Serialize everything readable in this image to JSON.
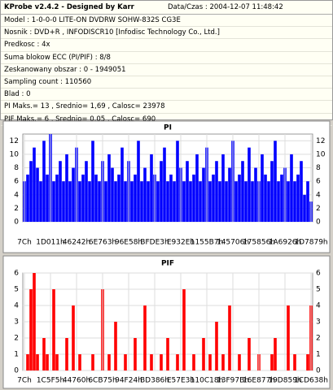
{
  "header": {
    "title": "KProbe v2.4.2 - Designed by Karr",
    "datetime": "Data/Czas : 2004-12-07 11:48:42"
  },
  "info": [
    "Model : 1-0-0-0 LITE-ON DVDRW SOHW-832S  CG3E",
    "Nosnik : DVD+R , INFODISCR10 [Infodisc Technology Co., Ltd.]",
    "Predkosc : 4x",
    "Suma blokow ECC (PI/PIF) : 8/8",
    "Zeskanowany obszar : 0 - 1949051",
    "Sampling count : 110560",
    "Blad : 0",
    "PI Maks.= 13 , Srednio= 1,69 , Calosc= 23978",
    "PIF Maks.= 6 , Srednio= 0,05 , Calosc= 690"
  ],
  "chart_data": [
    {
      "type": "bar",
      "title": "PI",
      "color": "#0000ff",
      "grid": true,
      "ylim": [
        0,
        13
      ],
      "yticks": [
        0,
        2,
        4,
        6,
        8,
        10,
        12
      ],
      "categories": [
        "7Ch",
        null,
        null,
        null,
        null,
        null,
        null,
        null,
        "1D011h",
        null,
        null,
        null,
        null,
        null,
        null,
        null,
        "46242h",
        null,
        null,
        null,
        null,
        null,
        null,
        null,
        "6E763h",
        null,
        null,
        null,
        null,
        null,
        null,
        null,
        "96E58h",
        null,
        null,
        null,
        null,
        null,
        null,
        null,
        "BFDE3h",
        null,
        null,
        null,
        null,
        null,
        null,
        null,
        "E932Eh",
        null,
        null,
        null,
        null,
        null,
        null,
        null,
        "1155B7h",
        null,
        null,
        null,
        null,
        null,
        null,
        null,
        "145706h",
        null,
        null,
        null,
        null,
        null,
        null,
        null,
        "175856h",
        null,
        null,
        null,
        null,
        null,
        null,
        null,
        "1A6926h",
        null,
        null,
        null,
        null,
        null,
        null,
        null,
        "1D7879h"
      ],
      "values": [
        6,
        7,
        9,
        11,
        8,
        6,
        12,
        7,
        13,
        6,
        7,
        9,
        6,
        10,
        6,
        8,
        11,
        6,
        7,
        9,
        6,
        12,
        7,
        6,
        9,
        6,
        10,
        8,
        6,
        7,
        11,
        6,
        9,
        6,
        7,
        12,
        6,
        8,
        6,
        10,
        7,
        6,
        9,
        11,
        6,
        7,
        6,
        12,
        8,
        6,
        9,
        6,
        7,
        10,
        6,
        8,
        11,
        6,
        7,
        9,
        6,
        10,
        6,
        8,
        12,
        6,
        7,
        9,
        6,
        11,
        6,
        8,
        6,
        10,
        7,
        6,
        9,
        12,
        6,
        7,
        8,
        6,
        10,
        6,
        7,
        9,
        4,
        6,
        3
      ]
    },
    {
      "type": "bar",
      "title": "PIF",
      "color": "#ff0000",
      "grid": true,
      "ylim": [
        0,
        6
      ],
      "yticks": [
        0,
        1,
        2,
        3,
        4,
        5,
        6
      ],
      "categories": [
        "7Ch",
        null,
        null,
        null,
        null,
        null,
        null,
        null,
        "1C5F5h",
        null,
        null,
        null,
        null,
        null,
        null,
        null,
        "44760h",
        null,
        null,
        null,
        null,
        null,
        null,
        null,
        "6CB75h",
        null,
        null,
        null,
        null,
        null,
        null,
        null,
        "94F24h",
        null,
        null,
        null,
        null,
        null,
        null,
        null,
        "BD386h",
        null,
        null,
        null,
        null,
        null,
        null,
        null,
        "E57E3h",
        null,
        null,
        null,
        null,
        null,
        null,
        null,
        "110C18h",
        null,
        null,
        null,
        null,
        null,
        null,
        null,
        "13F97Bh",
        null,
        null,
        null,
        null,
        null,
        null,
        null,
        "16E877h",
        null,
        null,
        null,
        null,
        null,
        null,
        null,
        "19D859h",
        null,
        null,
        null,
        null,
        null,
        null,
        null,
        "1CD638h"
      ],
      "values": [
        0,
        1,
        5,
        6,
        1,
        0,
        2,
        1,
        0,
        5,
        1,
        0,
        0,
        2,
        0,
        4,
        0,
        1,
        0,
        0,
        0,
        1,
        0,
        0,
        5,
        0,
        1,
        0,
        3,
        0,
        0,
        1,
        0,
        0,
        2,
        0,
        0,
        4,
        0,
        1,
        0,
        0,
        1,
        0,
        2,
        0,
        0,
        1,
        0,
        5,
        0,
        0,
        1,
        0,
        0,
        2,
        0,
        1,
        0,
        3,
        0,
        1,
        0,
        4,
        0,
        0,
        1,
        0,
        0,
        2,
        0,
        0,
        1,
        0,
        0,
        0,
        1,
        2,
        0,
        0,
        0,
        4,
        0,
        1,
        0,
        0,
        0,
        1,
        4
      ]
    }
  ]
}
